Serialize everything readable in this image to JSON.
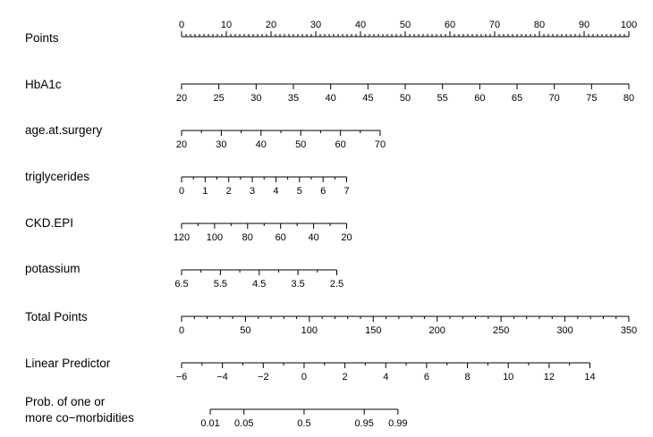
{
  "chart_data": {
    "type": "nomogram",
    "rows": [
      {
        "name": "Points",
        "labels": [
          "Points"
        ],
        "ticks_above": true,
        "scale": [
          0,
          100
        ],
        "major": [
          0,
          10,
          20,
          30,
          40,
          50,
          60,
          70,
          80,
          90,
          100
        ],
        "major_labels": [
          "0",
          "10",
          "20",
          "30",
          "40",
          "50",
          "60",
          "70",
          "80",
          "90",
          "100"
        ],
        "minor": [
          1,
          2,
          3,
          4,
          5,
          6,
          7,
          8,
          9,
          11,
          12,
          13,
          14,
          15,
          16,
          17,
          18,
          19,
          21,
          22,
          23,
          24,
          25,
          26,
          27,
          28,
          29,
          31,
          32,
          33,
          34,
          35,
          36,
          37,
          38,
          39,
          41,
          42,
          43,
          44,
          45,
          46,
          47,
          48,
          49,
          51,
          52,
          53,
          54,
          55,
          56,
          57,
          58,
          59,
          61,
          62,
          63,
          64,
          65,
          66,
          67,
          68,
          69,
          71,
          72,
          73,
          74,
          75,
          76,
          77,
          78,
          79,
          81,
          82,
          83,
          84,
          85,
          86,
          87,
          88,
          89,
          91,
          92,
          93,
          94,
          95,
          96,
          97,
          98,
          99
        ]
      },
      {
        "name": "HbA1c",
        "labels": [
          "HbA1c"
        ],
        "points_range": [
          0,
          100
        ],
        "scale": [
          20,
          80
        ],
        "major": [
          20,
          25,
          30,
          35,
          40,
          45,
          50,
          55,
          60,
          65,
          70,
          75,
          80
        ],
        "major_labels": [
          "20",
          "25",
          "30",
          "35",
          "40",
          "45",
          "50",
          "55",
          "60",
          "65",
          "70",
          "75",
          "80"
        ],
        "minor": []
      },
      {
        "name": "age.at.surgery",
        "labels": [
          "age.at.surgery"
        ],
        "points_range": [
          0,
          44.4
        ],
        "scale": [
          20,
          70
        ],
        "major": [
          20,
          30,
          40,
          50,
          60,
          70
        ],
        "major_labels": [
          "20",
          "30",
          "40",
          "50",
          "60",
          "70"
        ],
        "minor": [
          25,
          35,
          45,
          55,
          65
        ]
      },
      {
        "name": "triglycerides",
        "labels": [
          "triglycerides"
        ],
        "points_range": [
          0,
          36.9
        ],
        "scale": [
          0,
          7
        ],
        "major": [
          0,
          1,
          2,
          3,
          4,
          5,
          6,
          7
        ],
        "major_labels": [
          "0",
          "1",
          "2",
          "3",
          "4",
          "5",
          "6",
          "7"
        ],
        "minor": [
          0.5,
          1.5,
          2.5,
          3.5,
          4.5,
          5.5,
          6.5
        ]
      },
      {
        "name": "CKD.EPI",
        "labels": [
          "CKD.EPI"
        ],
        "points_range": [
          0,
          36.9
        ],
        "scale": [
          120,
          20
        ],
        "major": [
          120,
          100,
          80,
          60,
          40,
          20
        ],
        "major_labels": [
          "120",
          "100",
          "80",
          "60",
          "40",
          "20"
        ],
        "minor": [
          110,
          90,
          70,
          50,
          30
        ]
      },
      {
        "name": "potassium",
        "labels": [
          "potassium"
        ],
        "points_range": [
          0,
          34.7
        ],
        "scale": [
          6.5,
          2.5
        ],
        "major": [
          6.5,
          5.5,
          4.5,
          3.5,
          2.5
        ],
        "major_labels": [
          "6.5",
          "5.5",
          "4.5",
          "3.5",
          "2.5"
        ],
        "minor": [
          6,
          5,
          4,
          3
        ]
      },
      {
        "name": "Total Points",
        "labels": [
          "Total Points"
        ],
        "points_range": [
          0,
          100
        ],
        "scale": [
          0,
          350
        ],
        "major": [
          0,
          50,
          100,
          150,
          200,
          250,
          300,
          350
        ],
        "major_labels": [
          "0",
          "50",
          "100",
          "150",
          "200",
          "250",
          "300",
          "350"
        ],
        "minor": [
          10,
          20,
          30,
          40,
          60,
          70,
          80,
          90,
          110,
          120,
          130,
          140,
          160,
          170,
          180,
          190,
          210,
          220,
          230,
          240,
          260,
          270,
          280,
          290,
          310,
          320,
          330,
          340
        ]
      },
      {
        "name": "Linear Predictor",
        "labels": [
          "Linear Predictor"
        ],
        "points_range": [
          0,
          91.3
        ],
        "scale": [
          -6,
          14
        ],
        "major": [
          -6,
          -4,
          -2,
          0,
          2,
          4,
          6,
          8,
          10,
          12,
          14
        ],
        "major_labels": [
          "−6",
          "−4",
          "−2",
          "0",
          "2",
          "4",
          "6",
          "8",
          "10",
          "12",
          "14"
        ],
        "minor": [
          -5,
          -3,
          -1,
          1,
          3,
          5,
          7,
          9,
          11,
          13
        ]
      },
      {
        "name": "Prob. of one or more co-morbidities",
        "labels": [
          "Prob. of one or",
          "more co−morbidities"
        ],
        "scale_type": "logit",
        "major": [
          0.01,
          0.05,
          0.5,
          0.95,
          0.99
        ],
        "major_labels": [
          "0.01",
          "0.05",
          "0.5",
          "0.95",
          "0.99"
        ],
        "minor": []
      }
    ]
  }
}
